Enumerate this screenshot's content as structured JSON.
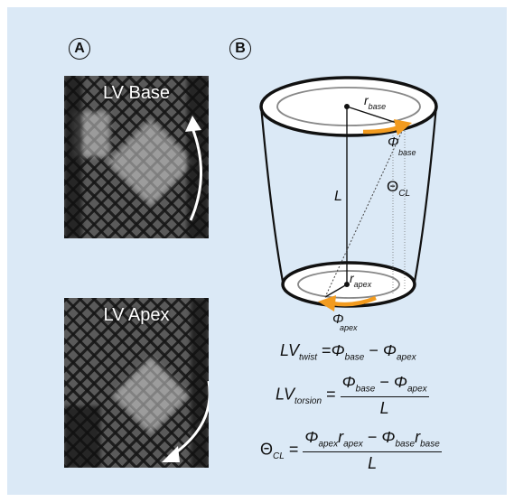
{
  "panel_a": {
    "label": "A",
    "images": [
      {
        "title": "LV Base"
      },
      {
        "title": "LV Apex"
      }
    ]
  },
  "panel_b": {
    "label": "B",
    "diagram": {
      "r_base": "r",
      "r_base_sub": "base",
      "phi_base": "Φ",
      "phi_base_sub": "base",
      "length": "L",
      "theta": "Θ",
      "theta_sub": "CL",
      "r_apex": "r",
      "r_apex_sub": "apex",
      "phi_apex": "Φ",
      "phi_apex_sub": "apex"
    },
    "formulas": {
      "twist": {
        "lhs": "LV",
        "lhs_sub": "twist",
        "eq": "=",
        "phi": "Φ",
        "base": "base",
        "minus": "−",
        "apex": "apex"
      },
      "torsion": {
        "lhs": "LV",
        "lhs_sub": "torsion",
        "eq": "=",
        "phi": "Φ",
        "base": "base",
        "minus": "−",
        "apex": "apex",
        "den": "L"
      },
      "theta": {
        "lhs": "Θ",
        "lhs_sub": "CL",
        "eq": "=",
        "phi": "Φ",
        "r": "r",
        "apex": "apex",
        "base": "base",
        "minus": "−",
        "den": "L"
      }
    }
  },
  "colors": {
    "background": "#dbe9f6",
    "accent": "#f29b1f"
  }
}
